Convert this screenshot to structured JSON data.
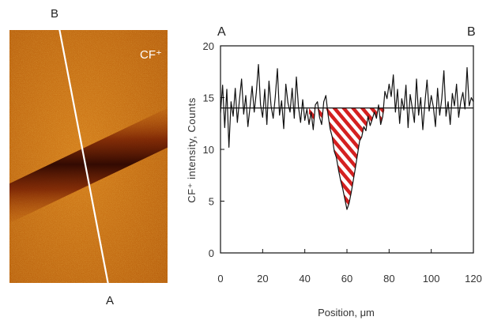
{
  "image_panel": {
    "label_top": "B",
    "label_bottom": "A",
    "ion_label": "CF⁺",
    "colors": {
      "background": "#cc7a1a",
      "band": "#3a0a00"
    }
  },
  "chart_data": {
    "type": "line",
    "xlabel": "Position, μm",
    "ylabel": "CF⁺ intensity, Counts",
    "corner_labels": {
      "left": "A",
      "right": "B"
    },
    "xlim": [
      0,
      120
    ],
    "ylim": [
      0,
      20
    ],
    "x_ticks": [
      0,
      20,
      40,
      60,
      80,
      100,
      120
    ],
    "y_ticks": [
      0,
      5,
      10,
      15,
      20
    ],
    "baseline": 14,
    "hatch_range": [
      42,
      78
    ],
    "colors": {
      "line": "#111111",
      "hatch": "#d42020"
    },
    "series": [
      {
        "x": [
          0,
          1,
          2,
          3,
          4,
          5,
          6,
          7,
          8,
          9,
          10,
          11,
          12,
          13,
          14,
          15,
          16,
          17,
          18,
          19,
          20,
          21,
          22,
          23,
          24,
          25,
          26,
          27,
          28,
          29,
          30,
          31,
          32,
          33,
          34,
          35,
          36,
          37,
          38,
          39,
          40,
          41,
          42,
          43,
          44,
          45,
          46,
          47,
          48,
          49,
          50,
          51,
          52,
          53,
          54,
          55,
          56,
          57,
          58,
          59,
          60,
          61,
          62,
          63,
          64,
          65,
          66,
          67,
          68,
          69,
          70,
          71,
          72,
          73,
          74,
          75,
          76,
          77,
          78,
          79,
          80,
          81,
          82,
          83,
          84,
          85,
          86,
          87,
          88,
          89,
          90,
          91,
          92,
          93,
          94,
          95,
          96,
          97,
          98,
          99,
          100,
          101,
          102,
          103,
          104,
          105,
          106,
          107,
          108,
          109,
          110,
          111,
          112,
          113,
          114,
          115,
          116,
          117,
          118,
          119,
          120
        ],
        "y": [
          13.5,
          16.2,
          12.1,
          15.8,
          10.2,
          14.6,
          13.2,
          15.9,
          12.6,
          14.8,
          16.8,
          13.4,
          15.2,
          12.2,
          14.1,
          16.1,
          13.6,
          15.5,
          18.2,
          14.3,
          13.1,
          15.8,
          12.4,
          16.6,
          14.2,
          13.0,
          15.1,
          17.8,
          13.3,
          14.7,
          12.0,
          16.3,
          14.5,
          13.6,
          15.9,
          13.0,
          17.0,
          14.1,
          12.6,
          14.8,
          12.8,
          13.9,
          12.4,
          13.6,
          11.9,
          14.3,
          14.6,
          13.1,
          12.4,
          14.6,
          15.2,
          13.4,
          12.0,
          11.2,
          9.8,
          9.2,
          8.0,
          7.0,
          6.2,
          5.2,
          4.2,
          4.8,
          5.8,
          7.0,
          8.2,
          9.5,
          10.8,
          11.2,
          12.2,
          11.8,
          13.2,
          12.3,
          12.9,
          13.6,
          13.0,
          14.3,
          12.4,
          13.2,
          15.6,
          14.9,
          16.3,
          15.1,
          17.2,
          13.6,
          15.8,
          12.5,
          14.9,
          13.8,
          16.2,
          12.1,
          15.3,
          14.0,
          12.6,
          16.8,
          13.3,
          15.0,
          11.9,
          14.5,
          16.7,
          13.7,
          15.2,
          14.1,
          12.2,
          15.9,
          13.3,
          14.9,
          17.6,
          13.2,
          14.6,
          12.4,
          15.4,
          14.2,
          16.3,
          13.1,
          14.6,
          15.5,
          13.9,
          17.9,
          14.2,
          15.0,
          14.6
        ]
      }
    ]
  }
}
